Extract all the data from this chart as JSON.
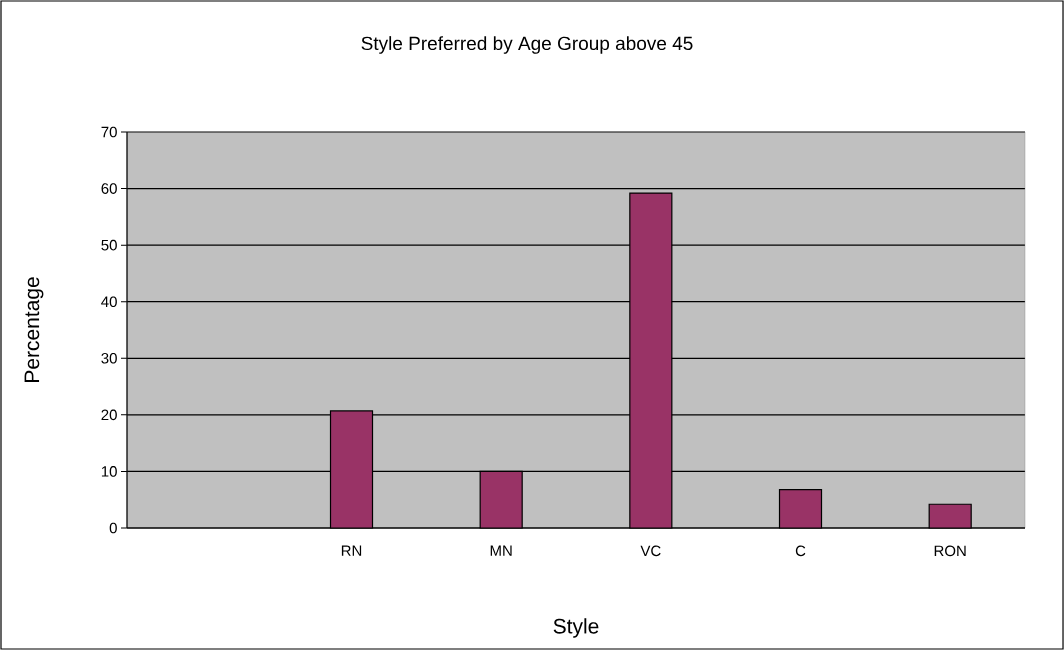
{
  "chart_data": {
    "type": "bar",
    "title": "Style Preferred by Age Group above 45",
    "xlabel": "Style",
    "ylabel": "Percentage",
    "categories": [
      null,
      "RN",
      "MN",
      "VC",
      "C",
      "RON"
    ],
    "values": [
      null,
      20.7,
      10,
      59.2,
      6.8,
      4.2
    ],
    "color": "#993366",
    "ylim": [
      0,
      70
    ],
    "yticks": [
      0,
      10,
      20,
      30,
      40,
      50,
      60,
      70
    ],
    "grid": "y"
  }
}
